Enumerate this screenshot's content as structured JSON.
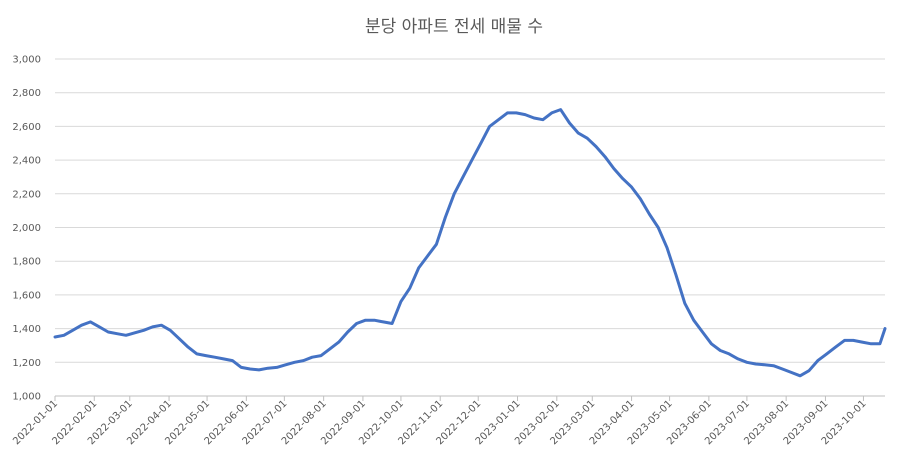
{
  "chart_data": {
    "type": "line",
    "title": "분당 아파트 전세 매물 수",
    "xlabel": "",
    "ylabel": "",
    "ylim": [
      1000,
      3000
    ],
    "yticks": [
      1000,
      1200,
      1400,
      1600,
      1800,
      2000,
      2200,
      2400,
      2600,
      2800,
      3000
    ],
    "ytick_labels": [
      "1,000",
      "1,200",
      "1,400",
      "1,600",
      "1,800",
      "2,000",
      "2,200",
      "2,400",
      "2,600",
      "2,800",
      "3,000"
    ],
    "xlim": [
      "2022-01-01",
      "2023-10-18"
    ],
    "xtick_labels": [
      "2022-01-01",
      "2022-02-01",
      "2022-03-01",
      "2022-04-01",
      "2022-05-01",
      "2022-06-01",
      "2022-07-01",
      "2022-08-01",
      "2022-09-01",
      "2022-10-01",
      "2022-11-01",
      "2022-12-01",
      "2023-01-01",
      "2023-02-01",
      "2023-03-01",
      "2023-04-01",
      "2023-05-01",
      "2023-06-01",
      "2023-07-01",
      "2023-08-01",
      "2023-09-01",
      "2023-10-01"
    ],
    "grid": true,
    "legend": "none",
    "line_color": "#4472c4",
    "series": [
      {
        "x": [
          "2022-01-01",
          "2022-01-08",
          "2022-01-15",
          "2022-01-22",
          "2022-01-29",
          "2022-02-05",
          "2022-02-12",
          "2022-02-19",
          "2022-02-26",
          "2022-03-05",
          "2022-03-12",
          "2022-03-19",
          "2022-03-26",
          "2022-04-02",
          "2022-04-09",
          "2022-04-16",
          "2022-04-23",
          "2022-04-30",
          "2022-05-07",
          "2022-05-14",
          "2022-05-21",
          "2022-05-28",
          "2022-06-04",
          "2022-06-11",
          "2022-06-18",
          "2022-06-25",
          "2022-07-02",
          "2022-07-09",
          "2022-07-16",
          "2022-07-23",
          "2022-07-30",
          "2022-08-06",
          "2022-08-13",
          "2022-08-20",
          "2022-08-27",
          "2022-09-03",
          "2022-09-10",
          "2022-09-17",
          "2022-09-24",
          "2022-10-01",
          "2022-10-08",
          "2022-10-15",
          "2022-10-22",
          "2022-10-29",
          "2022-11-05",
          "2022-11-12",
          "2022-11-19",
          "2022-11-26",
          "2022-12-03",
          "2022-12-10",
          "2022-12-17",
          "2022-12-24",
          "2022-12-31",
          "2023-01-07",
          "2023-01-14",
          "2023-01-21",
          "2023-01-28",
          "2023-02-04",
          "2023-02-11",
          "2023-02-18",
          "2023-02-25",
          "2023-03-04",
          "2023-03-11",
          "2023-03-18",
          "2023-03-25",
          "2023-04-01",
          "2023-04-08",
          "2023-04-15",
          "2023-04-22",
          "2023-04-29",
          "2023-05-06",
          "2023-05-13",
          "2023-05-20",
          "2023-05-27",
          "2023-06-03",
          "2023-06-10",
          "2023-06-17",
          "2023-06-24",
          "2023-07-01",
          "2023-07-08",
          "2023-07-15",
          "2023-07-22",
          "2023-07-29",
          "2023-08-05",
          "2023-08-12",
          "2023-08-19",
          "2023-08-26",
          "2023-09-02",
          "2023-09-09",
          "2023-09-16",
          "2023-09-23",
          "2023-09-30",
          "2023-10-07",
          "2023-10-14",
          "2023-10-18"
        ],
        "values": [
          1350,
          1360,
          1390,
          1420,
          1440,
          1410,
          1380,
          1370,
          1360,
          1375,
          1390,
          1410,
          1420,
          1390,
          1340,
          1290,
          1250,
          1240,
          1230,
          1220,
          1210,
          1170,
          1160,
          1155,
          1165,
          1170,
          1185,
          1200,
          1210,
          1230,
          1240,
          1280,
          1320,
          1380,
          1430,
          1450,
          1450,
          1440,
          1430,
          1560,
          1640,
          1760,
          1830,
          1900,
          2060,
          2200,
          2300,
          2400,
          2500,
          2600,
          2640,
          2680,
          2680,
          2670,
          2650,
          2640,
          2680,
          2700,
          2620,
          2560,
          2530,
          2480,
          2420,
          2350,
          2290,
          2240,
          2170,
          2080,
          2000,
          1880,
          1720,
          1550,
          1450,
          1380,
          1310,
          1270,
          1250,
          1220,
          1200,
          1190,
          1185,
          1180,
          1160,
          1140,
          1120,
          1150,
          1210,
          1250,
          1290,
          1330,
          1330,
          1320,
          1310,
          1310,
          1400
        ]
      }
    ]
  }
}
